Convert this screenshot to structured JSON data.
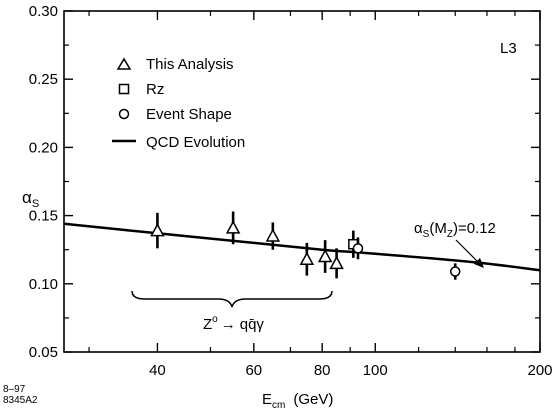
{
  "chart_data": {
    "type": "scatter",
    "title": "",
    "xlabel": "E",
    "xlabel_sub": "cm",
    "xlabel_unit": "(GeV)",
    "ylabel": "α",
    "ylabel_sub": "S",
    "xscale": "log",
    "xlim": [
      27,
      200
    ],
    "ylim": [
      0.05,
      0.3
    ],
    "x_ticks": [
      40,
      60,
      80,
      100,
      200
    ],
    "y_ticks": [
      0.05,
      0.1,
      0.15,
      0.2,
      0.25,
      0.3
    ],
    "y_tick_labels": [
      "0.05",
      "0.10",
      "0.15",
      "0.20",
      "0.25",
      "0.30"
    ],
    "grid": false,
    "legend_position": "top-left",
    "experiment_label": "L3",
    "series": [
      {
        "name": "This Analysis",
        "marker": "triangle",
        "points": [
          {
            "x": 40,
            "y": 0.139,
            "err": 0.013
          },
          {
            "x": 55,
            "y": 0.141,
            "err": 0.012
          },
          {
            "x": 65,
            "y": 0.135,
            "err": 0.01
          },
          {
            "x": 75,
            "y": 0.118,
            "err": 0.012
          },
          {
            "x": 81,
            "y": 0.12,
            "err": 0.012
          },
          {
            "x": 85,
            "y": 0.115,
            "err": 0.011
          }
        ]
      },
      {
        "name": "Rz",
        "marker": "square",
        "points": [
          {
            "x": 91.2,
            "y": 0.129,
            "err": 0.01
          }
        ]
      },
      {
        "name": "Event Shape",
        "marker": "circle",
        "points": [
          {
            "x": 93,
            "y": 0.126,
            "err": 0.008
          },
          {
            "x": 140,
            "y": 0.109,
            "err": 0.006
          }
        ]
      },
      {
        "name": "QCD Evolution",
        "marker": "line",
        "curve": [
          {
            "x": 27,
            "y": 0.144
          },
          {
            "x": 40,
            "y": 0.137
          },
          {
            "x": 60,
            "y": 0.13
          },
          {
            "x": 80,
            "y": 0.125
          },
          {
            "x": 100,
            "y": 0.122
          },
          {
            "x": 150,
            "y": 0.116
          },
          {
            "x": 200,
            "y": 0.11
          }
        ]
      }
    ],
    "annotations": {
      "curve_label": {
        "text": "α",
        "sub": "S",
        "rest": "(M",
        "sub2": "Z",
        "end": ")=0.12"
      },
      "brace_label": {
        "text": "Z",
        "sup": "o",
        "arrow": "→",
        "rest": "qq̄γ"
      }
    }
  },
  "corner_label": {
    "line1": "8–97",
    "line2": "8345A2"
  }
}
